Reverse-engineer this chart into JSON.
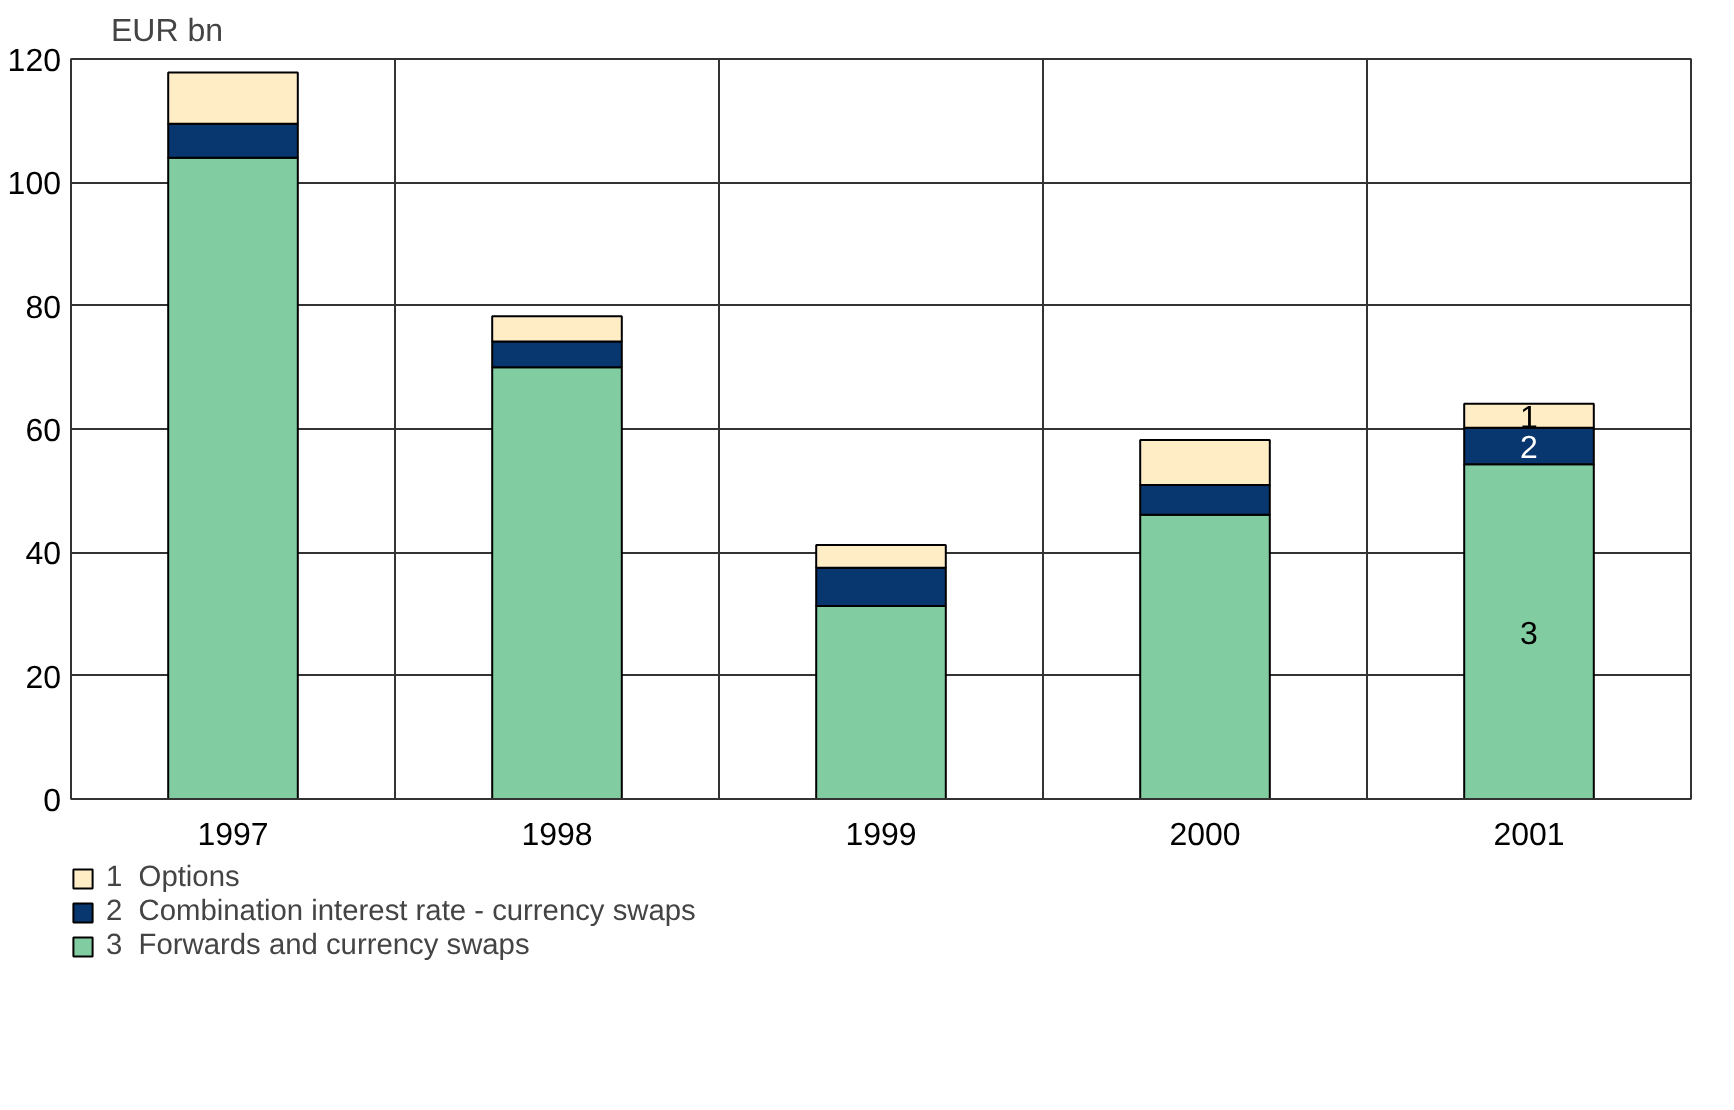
{
  "chart_data": {
    "type": "bar",
    "stacked": true,
    "ylabel": "EUR bn",
    "categories": [
      "1997",
      "1998",
      "1999",
      "2000",
      "2001"
    ],
    "series": [
      {
        "name": "3  Forwards and currency swaps",
        "color": "#82cca2",
        "values": [
          104,
          70,
          31.3,
          46.1,
          54.3
        ]
      },
      {
        "name": "2  Combination interest rate - currency swaps",
        "color": "#08366e",
        "values": [
          5.5,
          4.2,
          6.2,
          4.8,
          5.9
        ]
      },
      {
        "name": "1  Options",
        "color": "#ffedc6",
        "values": [
          8.3,
          4.1,
          3.7,
          7.3,
          3.9
        ]
      }
    ],
    "ylim": [
      0,
      120
    ],
    "yticks": [
      0,
      20,
      40,
      60,
      80,
      100,
      120
    ],
    "grid": true,
    "legend": "bottom",
    "annotations": [
      "1",
      "2",
      "3"
    ]
  }
}
